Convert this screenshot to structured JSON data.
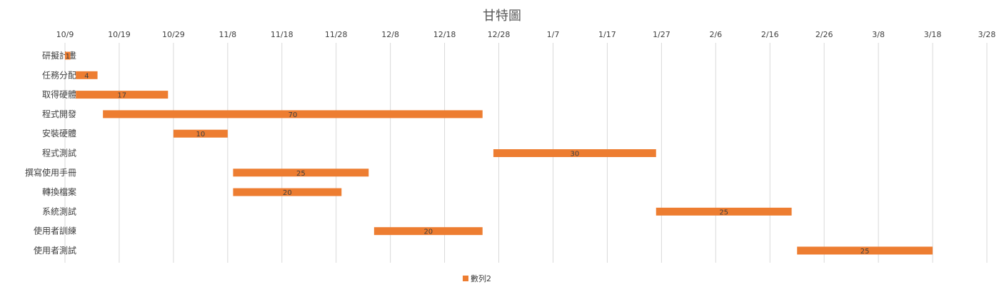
{
  "chart_data": {
    "type": "bar",
    "title": "甘特圖",
    "x_ticks": [
      "10/9",
      "10/19",
      "10/29",
      "11/8",
      "11/18",
      "11/28",
      "12/8",
      "12/18",
      "12/28",
      "1/7",
      "1/17",
      "1/27",
      "2/6",
      "2/16",
      "2/26",
      "3/8",
      "3/18",
      "3/28"
    ],
    "x_axis_start": "10/9",
    "x_axis_end": "3/28",
    "x_axis_position": "top",
    "grid": true,
    "legend_position": "bottom",
    "bar_color": "#ed7d31",
    "series": [
      {
        "name": "數列2",
        "color": "#ed7d31"
      }
    ],
    "tasks": [
      {
        "label": "研擬計畫",
        "start": "10/9",
        "duration": 1
      },
      {
        "label": "任務分配",
        "start": "10/11",
        "duration": 4
      },
      {
        "label": "取得硬體",
        "start": "10/11",
        "duration": 17
      },
      {
        "label": "程式開發",
        "start": "10/16",
        "duration": 70
      },
      {
        "label": "安裝硬體",
        "start": "10/29",
        "duration": 10
      },
      {
        "label": "程式測試",
        "start": "12/27",
        "duration": 30
      },
      {
        "label": "撰寫使用手冊",
        "start": "11/9",
        "duration": 25
      },
      {
        "label": "轉換檔案",
        "start": "11/9",
        "duration": 20
      },
      {
        "label": "系統測試",
        "start": "1/26",
        "duration": 25
      },
      {
        "label": "使用者訓練",
        "start": "12/5",
        "duration": 20
      },
      {
        "label": "使用者測試",
        "start": "2/21",
        "duration": 25
      }
    ]
  }
}
